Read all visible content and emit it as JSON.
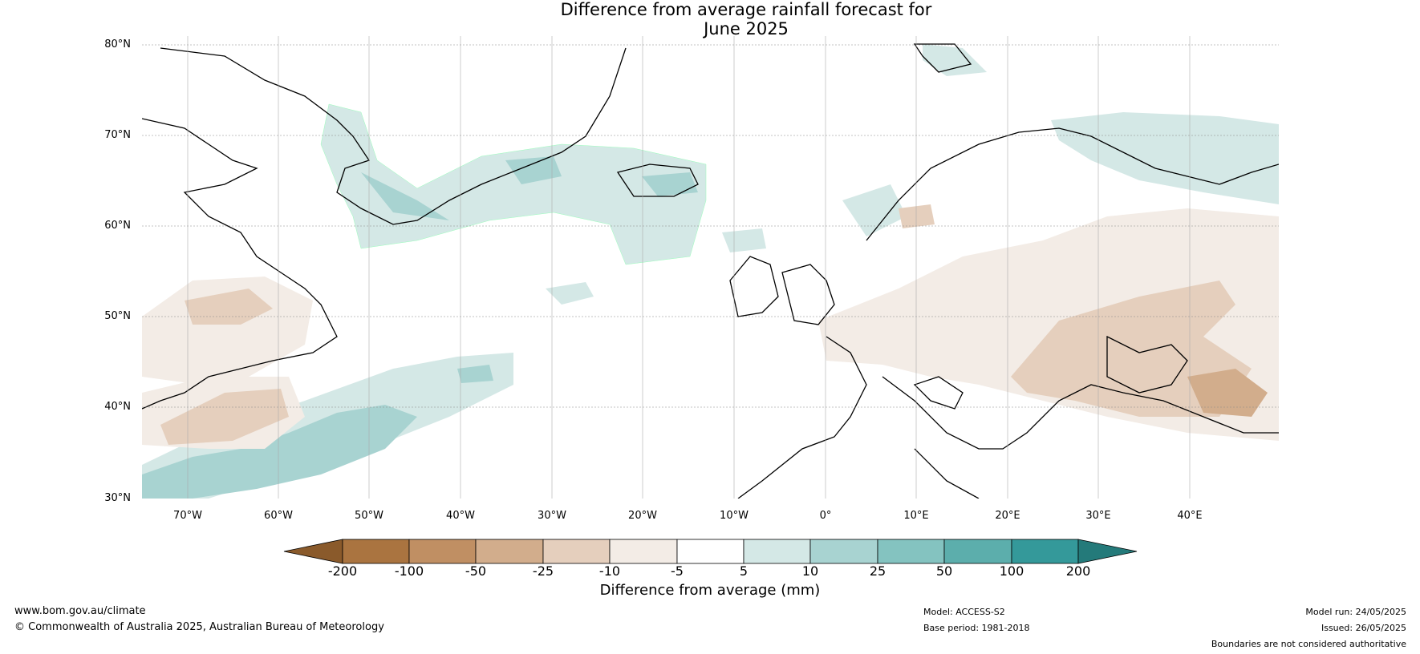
{
  "title_line1": "Difference from average rainfall forecast for",
  "title_line2": "June 2025",
  "latitude_labels": [
    "80°N",
    "70°N",
    "60°N",
    "50°N",
    "40°N",
    "30°N"
  ],
  "longitude_labels": [
    "70°W",
    "60°W",
    "50°W",
    "40°W",
    "30°W",
    "20°W",
    "10°W",
    "0°",
    "10°E",
    "20°E",
    "30°E",
    "40°E"
  ],
  "colorbar": {
    "title": "Difference from average (mm)",
    "tick_labels": [
      "-200",
      "-100",
      "-50",
      "-25",
      "-10",
      "-5",
      "5",
      "10",
      "25",
      "50",
      "100",
      "200"
    ],
    "colors": [
      "#8a5a2b",
      "#aa7440",
      "#c08f63",
      "#d2ad8c",
      "#e5cfbd",
      "#f3ece6",
      "#ffffff",
      "#d4e8e6",
      "#a8d3d1",
      "#84c3c0",
      "#5caeac",
      "#34999a",
      "#247a7a"
    ]
  },
  "footer": {
    "website": "www.bom.gov.au/climate",
    "copyright": "© Commonwealth of Australia 2025, Australian Bureau of Meteorology",
    "model": "Model: ACCESS-S2",
    "base_period": "Base period: 1981-2018",
    "model_run": "Model run: 24/05/2025",
    "issued": "Issued: 26/05/2025",
    "disclaimer": "Boundaries are not considered authoritative"
  }
}
